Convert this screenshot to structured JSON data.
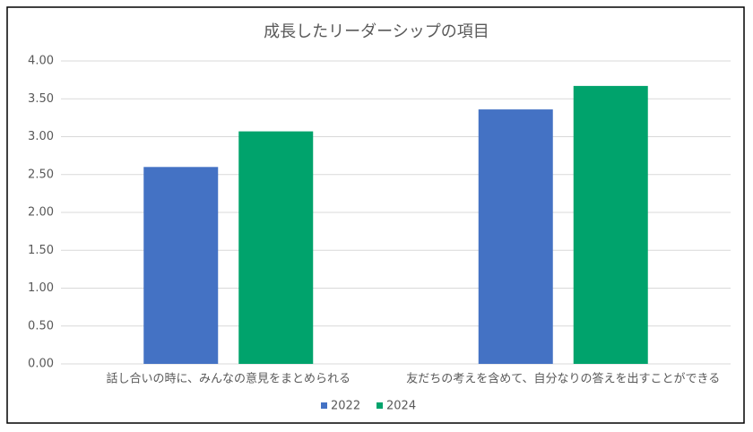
{
  "chart_data": {
    "type": "bar",
    "title": "成長したリーダーシップの項目",
    "categories": [
      "話し合いの時に、みんなの意見をまとめられる",
      "友だちの考えを含めて、自分なりの答えを出すことができる"
    ],
    "series": [
      {
        "name": "2022",
        "color": "#4472c4",
        "values": [
          2.6,
          3.36
        ]
      },
      {
        "name": "2024",
        "color": "#00a36c",
        "values": [
          3.07,
          3.67
        ]
      }
    ],
    "ylim": [
      0,
      4
    ],
    "yticks": [
      {
        "value": 0,
        "label": "0.00"
      },
      {
        "value": 0.5,
        "label": "0.50"
      },
      {
        "value": 1,
        "label": "1.00"
      },
      {
        "value": 1.5,
        "label": "1.50"
      },
      {
        "value": 2,
        "label": "2.00"
      },
      {
        "value": 2.5,
        "label": "2.50"
      },
      {
        "value": 3,
        "label": "3.00"
      },
      {
        "value": 3.5,
        "label": "3.50"
      },
      {
        "value": 4,
        "label": "4.00"
      }
    ],
    "grid": true,
    "legend": "bottom"
  }
}
